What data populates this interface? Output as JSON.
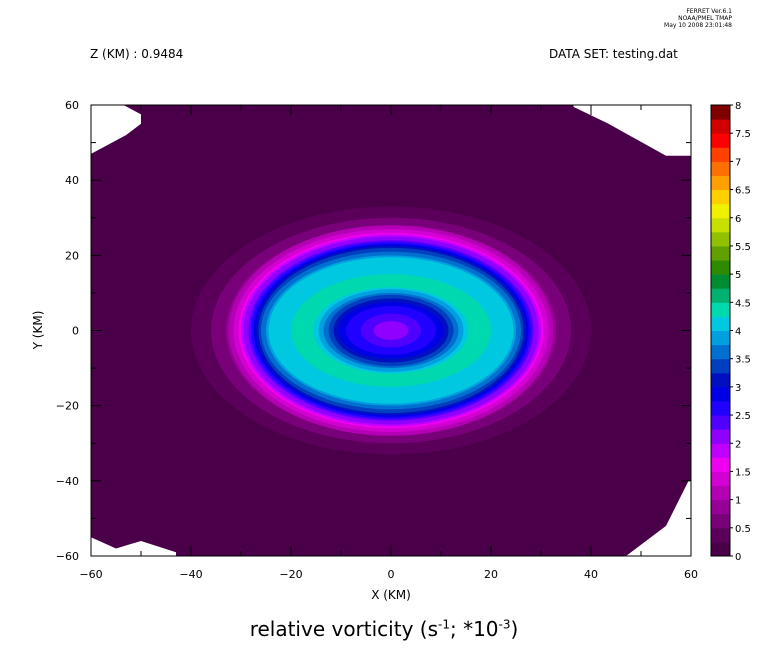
{
  "header": {
    "stamp_line1": "FERRET  Ver.6.1",
    "stamp_line2": "NOAA/PMEL TMAP",
    "stamp_line3": "May 10 2008 23:01:48",
    "z_label": "Z (KM) : 0.9484",
    "dataset_label": "DATA SET: testing.dat"
  },
  "chart_data": {
    "type": "heatmap",
    "subtype": "filled-contour",
    "title_text": "relative vorticity (s",
    "title_exp1": "-1",
    "title_mid": "; *10",
    "title_exp2": "-3",
    "title_end": ")",
    "xlabel": "X (KM)",
    "ylabel": "Y (KM)",
    "xlim": [
      -60,
      60
    ],
    "ylim": [
      -60,
      60
    ],
    "x_ticks": [
      -60,
      -40,
      -20,
      0,
      20,
      40,
      60
    ],
    "x_tick_labels": [
      "−60",
      "−40",
      "−20",
      "0",
      "20",
      "40",
      "60"
    ],
    "y_ticks": [
      60,
      40,
      20,
      0,
      -20,
      -40,
      -60
    ],
    "y_tick_labels": [
      "60",
      "40",
      "20",
      "0",
      "−20",
      "−40",
      "−60"
    ],
    "colorbar": {
      "levels": [
        0,
        0.25,
        0.5,
        0.75,
        1,
        1.25,
        1.5,
        1.75,
        2,
        2.25,
        2.5,
        2.75,
        3,
        3.25,
        3.5,
        3.75,
        4,
        4.25,
        4.5,
        4.75,
        5,
        5.25,
        5.5,
        5.75,
        6,
        6.25,
        6.5,
        6.75,
        7,
        7.25,
        7.5,
        7.75,
        8
      ],
      "labels": [
        "8",
        "7.5",
        "7",
        "6.5",
        "6",
        "5.5",
        "5",
        "4.5",
        "4",
        "3.5",
        "3",
        "2.5",
        "2",
        "1.5",
        "1",
        "0.5",
        "0"
      ],
      "label_values": [
        8,
        7.5,
        7,
        6.5,
        6,
        5.5,
        5,
        4.5,
        4,
        3.5,
        3,
        2.5,
        2,
        1.5,
        1,
        0.5,
        0
      ],
      "colors": [
        "#4a0049",
        "#5a005a",
        "#780078",
        "#960096",
        "#b400b4",
        "#d200d2",
        "#f000f0",
        "#c000ff",
        "#9000ff",
        "#5000ff",
        "#2000ff",
        "#0000e6",
        "#0010c0",
        "#0040c0",
        "#0070d0",
        "#00a0e0",
        "#00c8e0",
        "#00d8b0",
        "#00b070",
        "#008c30",
        "#2e8b00",
        "#60a000",
        "#90c000",
        "#c8e000",
        "#f0f000",
        "#ffd000",
        "#ffa000",
        "#ff7000",
        "#ff4000",
        "#ff0000",
        "#d00000",
        "#800000"
      ]
    },
    "field": {
      "center": [
        0,
        0
      ],
      "contours": [
        {
          "value": 0.25,
          "rx": 40,
          "ry": 33
        },
        {
          "value": 0.5,
          "rx": 36,
          "ry": 30
        },
        {
          "value": 0.75,
          "rx": 33,
          "ry": 28
        },
        {
          "value": 1,
          "rx": 32.5,
          "ry": 28
        },
        {
          "value": 1.25,
          "rx": 31.5,
          "ry": 27
        },
        {
          "value": 1.5,
          "rx": 30.5,
          "ry": 26
        },
        {
          "value": 1.75,
          "rx": 30,
          "ry": 25.5
        },
        {
          "value": 2,
          "rx": 29.5,
          "ry": 25
        },
        {
          "value": 2.25,
          "rx": 28.5,
          "ry": 24
        },
        {
          "value": 2.5,
          "rx": 28,
          "ry": 23.5
        },
        {
          "value": 2.75,
          "rx": 27.5,
          "ry": 23
        },
        {
          "value": 3,
          "rx": 27,
          "ry": 22.5
        },
        {
          "value": 3.25,
          "rx": 26.5,
          "ry": 22
        },
        {
          "value": 3.5,
          "rx": 26,
          "ry": 21
        },
        {
          "value": 3.75,
          "rx": 25,
          "ry": 20
        },
        {
          "value": 4,
          "rx": 24.5,
          "ry": 19.5
        },
        {
          "value": 4.25,
          "rx": 20,
          "ry": 15
        }
      ],
      "inner_contours": [
        {
          "value": 4.25,
          "rx": 17,
          "ry": 12.5
        },
        {
          "value": 4,
          "rx": 15.5,
          "ry": 11.5
        },
        {
          "value": 3.75,
          "rx": 14.5,
          "ry": 11
        },
        {
          "value": 3.5,
          "rx": 13.5,
          "ry": 10
        },
        {
          "value": 3.25,
          "rx": 12.5,
          "ry": 9.5
        },
        {
          "value": 3,
          "rx": 11.5,
          "ry": 8.5
        },
        {
          "value": 2.75,
          "rx": 10.5,
          "ry": 7.5
        },
        {
          "value": 2.5,
          "rx": 9,
          "ry": 6.5
        },
        {
          "value": 2.25,
          "rx": 6,
          "ry": 4.5
        },
        {
          "value": 2,
          "rx": 3.5,
          "ry": 2.5
        }
      ]
    },
    "missing_corners": {
      "top_left": [
        [
          -60,
          60
        ],
        [
          -53.5,
          60
        ],
        [
          -50,
          57.5
        ],
        [
          -50,
          55
        ],
        [
          -53,
          52
        ],
        [
          -60,
          47
        ]
      ],
      "top_right": [
        [
          60,
          60
        ],
        [
          36.5,
          60
        ],
        [
          36.5,
          59.5
        ],
        [
          43.5,
          55
        ],
        [
          55,
          46.5
        ],
        [
          60,
          46.5
        ]
      ],
      "bottom_left": [
        [
          -60,
          -60
        ],
        [
          -60,
          -55
        ],
        [
          -55,
          -58
        ],
        [
          -50,
          -56
        ],
        [
          -43,
          -59
        ],
        [
          -43,
          -60
        ]
      ],
      "bottom_right": [
        [
          60,
          -60
        ],
        [
          47,
          -60
        ],
        [
          50,
          -57
        ],
        [
          55,
          -52
        ],
        [
          59.5,
          -40
        ],
        [
          60,
          -40
        ]
      ]
    },
    "grid": false,
    "legend": "colorbar-right"
  }
}
